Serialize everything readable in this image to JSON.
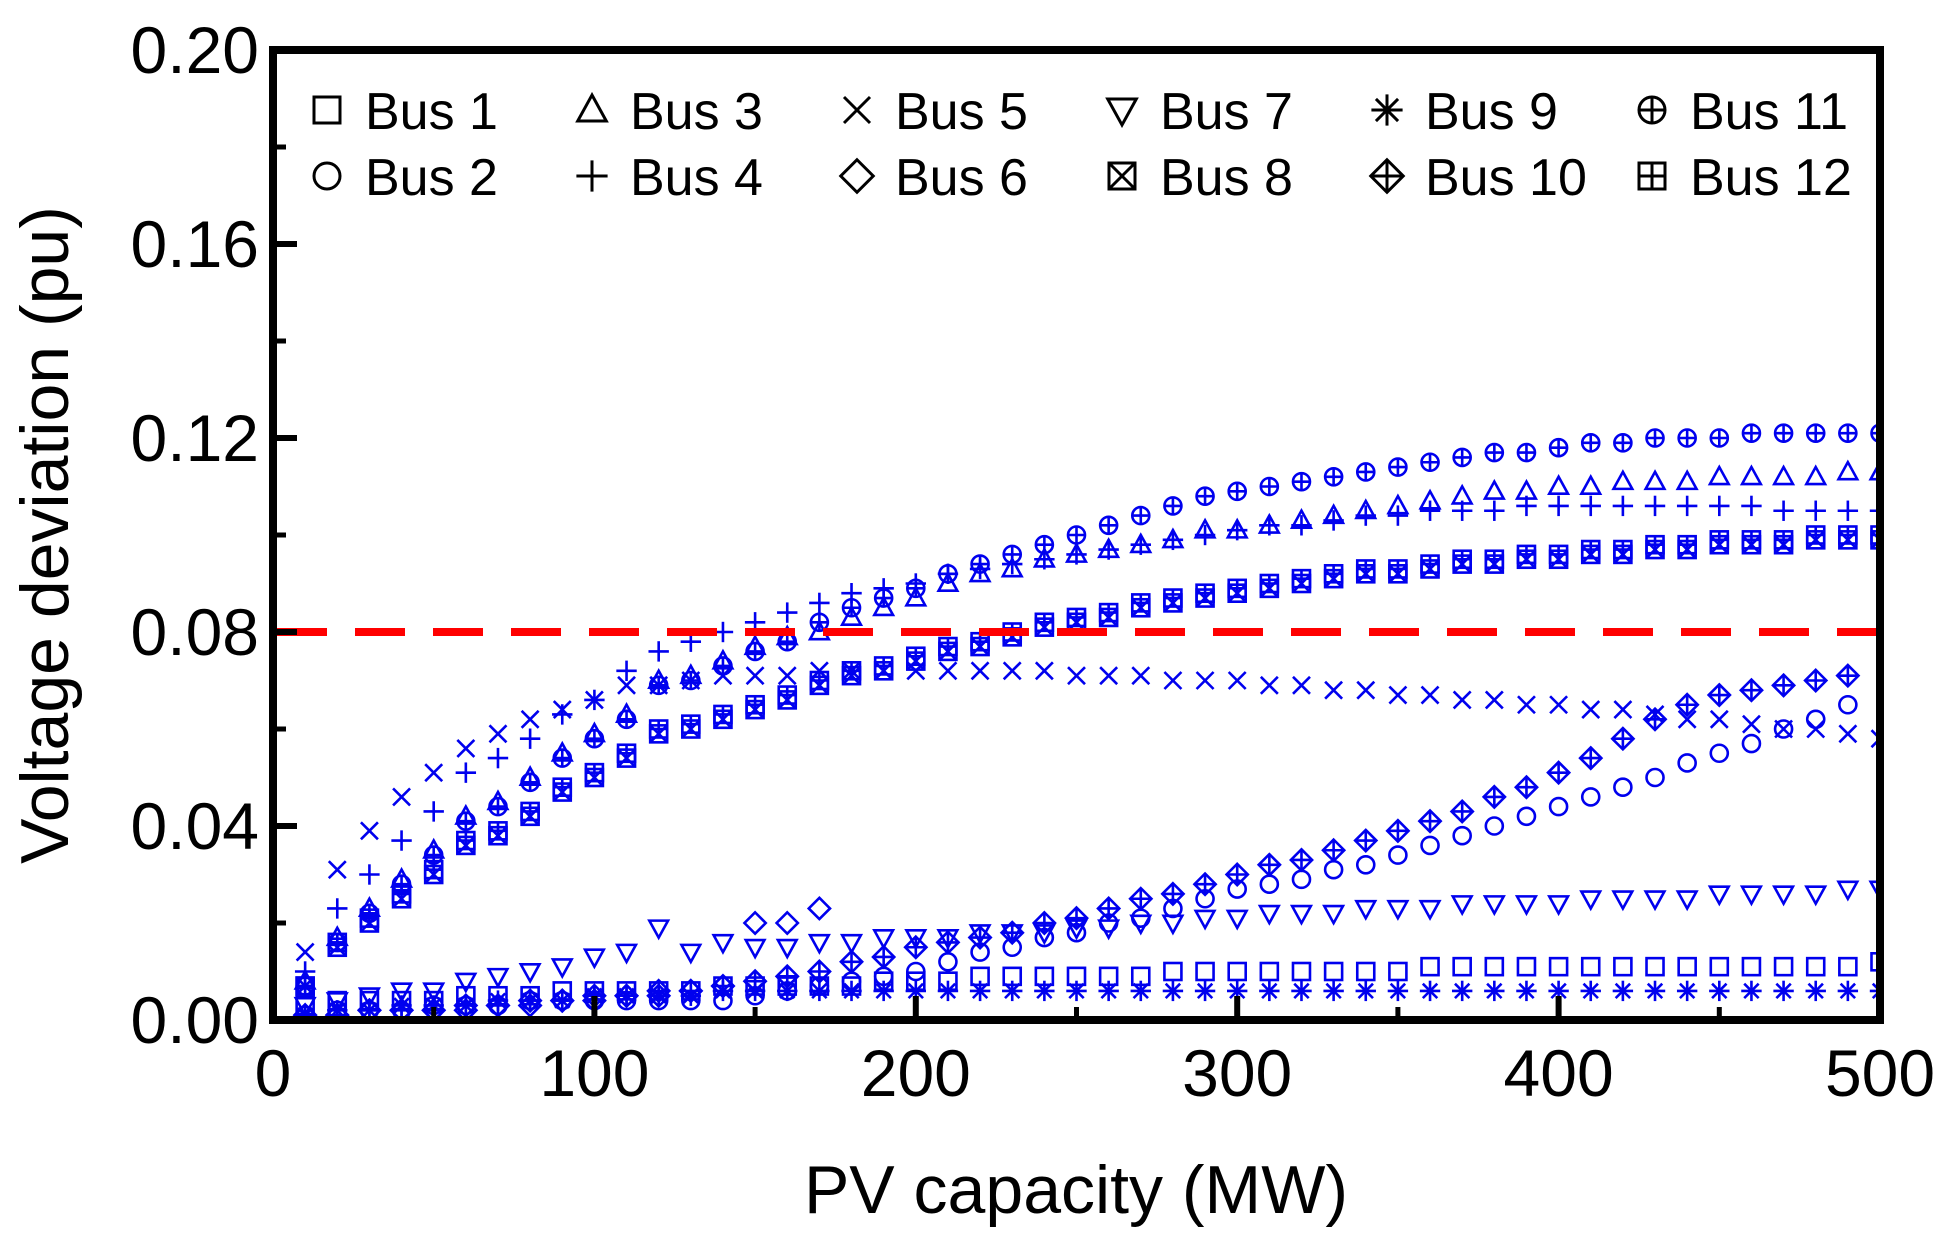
{
  "chart_data": {
    "type": "scatter",
    "title": "",
    "xlabel": "PV capacity  (MW)",
    "ylabel": "Voltage deviation (pu)",
    "xlim": [
      0,
      500
    ],
    "ylim": [
      0,
      0.2
    ],
    "xticks": [
      "0",
      "100",
      "200",
      "300",
      "400",
      "500"
    ],
    "yticks": [
      "0.00",
      "0.04",
      "0.08",
      "0.12",
      "0.16",
      "0.20"
    ],
    "grid": false,
    "legend_position": "top",
    "marker_color": "#0000ee",
    "threshold": {
      "y": 0.08,
      "color": "#ff0000",
      "style": "dashed"
    },
    "series": [
      {
        "name": "Bus 1",
        "marker": "square",
        "x": [
          10,
          20,
          30,
          40,
          50,
          60,
          70,
          80,
          90,
          100,
          110,
          120,
          130,
          140,
          150,
          160,
          170,
          180,
          190,
          200,
          210,
          220,
          230,
          240,
          250,
          260,
          270,
          280,
          290,
          300,
          310,
          320,
          330,
          340,
          350,
          360,
          370,
          380,
          390,
          400,
          410,
          420,
          430,
          440,
          450,
          460,
          470,
          480,
          490,
          500
        ],
        "y": [
          0.003,
          0.004,
          0.004,
          0.004,
          0.004,
          0.005,
          0.005,
          0.005,
          0.006,
          0.006,
          0.006,
          0.006,
          0.006,
          0.007,
          0.007,
          0.007,
          0.007,
          0.007,
          0.008,
          0.008,
          0.008,
          0.009,
          0.009,
          0.009,
          0.009,
          0.009,
          0.009,
          0.01,
          0.01,
          0.01,
          0.01,
          0.01,
          0.01,
          0.01,
          0.01,
          0.011,
          0.011,
          0.011,
          0.011,
          0.011,
          0.011,
          0.011,
          0.011,
          0.011,
          0.011,
          0.011,
          0.011,
          0.011,
          0.011,
          0.012
        ]
      },
      {
        "name": "Bus 2",
        "marker": "circle",
        "x": [
          10,
          20,
          30,
          40,
          50,
          60,
          70,
          80,
          90,
          100,
          110,
          120,
          130,
          140,
          150,
          160,
          170,
          180,
          190,
          200,
          210,
          220,
          230,
          240,
          250,
          260,
          270,
          280,
          290,
          300,
          310,
          320,
          330,
          340,
          350,
          360,
          370,
          380,
          390,
          400,
          410,
          420,
          430,
          440,
          450,
          460,
          470,
          480,
          490
        ],
        "y": [
          0.001,
          0.002,
          0.002,
          0.002,
          0.003,
          0.003,
          0.003,
          0.004,
          0.004,
          0.004,
          0.004,
          0.004,
          0.004,
          0.004,
          0.005,
          0.006,
          0.007,
          0.008,
          0.009,
          0.01,
          0.012,
          0.014,
          0.015,
          0.017,
          0.018,
          0.02,
          0.021,
          0.023,
          0.025,
          0.027,
          0.028,
          0.029,
          0.031,
          0.032,
          0.034,
          0.036,
          0.038,
          0.04,
          0.042,
          0.044,
          0.046,
          0.048,
          0.05,
          0.053,
          0.055,
          0.057,
          0.06,
          0.062,
          0.065
        ]
      },
      {
        "name": "Bus 3",
        "marker": "triangle-up",
        "x": [
          10,
          20,
          30,
          40,
          50,
          60,
          70,
          80,
          90,
          100,
          110,
          120,
          130,
          140,
          150,
          160,
          170,
          180,
          190,
          200,
          210,
          220,
          230,
          240,
          250,
          260,
          270,
          280,
          290,
          300,
          310,
          320,
          330,
          340,
          350,
          360,
          370,
          380,
          390,
          400,
          410,
          420,
          430,
          440,
          450,
          460,
          470,
          480,
          490,
          500
        ],
        "y": [
          0.008,
          0.017,
          0.023,
          0.029,
          0.035,
          0.042,
          0.045,
          0.05,
          0.055,
          0.059,
          0.063,
          0.07,
          0.071,
          0.074,
          0.077,
          0.079,
          0.08,
          0.083,
          0.085,
          0.087,
          0.09,
          0.092,
          0.093,
          0.095,
          0.096,
          0.097,
          0.098,
          0.099,
          0.101,
          0.101,
          0.102,
          0.103,
          0.104,
          0.105,
          0.106,
          0.107,
          0.108,
          0.109,
          0.109,
          0.11,
          0.11,
          0.111,
          0.111,
          0.111,
          0.112,
          0.112,
          0.112,
          0.112,
          0.113,
          0.113
        ]
      },
      {
        "name": "Bus 4",
        "marker": "plus",
        "x": [
          10,
          20,
          30,
          40,
          50,
          60,
          70,
          80,
          90,
          100,
          110,
          120,
          130,
          140,
          150,
          160,
          170,
          180,
          190,
          200,
          210,
          220,
          230,
          240,
          250,
          260,
          270,
          280,
          290,
          300,
          310,
          320,
          330,
          340,
          350,
          360,
          370,
          380,
          390,
          400,
          410,
          420,
          430,
          440,
          450,
          460,
          470,
          480,
          490,
          500
        ],
        "y": [
          0.01,
          0.023,
          0.03,
          0.037,
          0.043,
          0.051,
          0.054,
          0.058,
          0.063,
          0.066,
          0.072,
          0.076,
          0.078,
          0.08,
          0.082,
          0.084,
          0.086,
          0.088,
          0.089,
          0.09,
          0.092,
          0.093,
          0.094,
          0.095,
          0.096,
          0.097,
          0.098,
          0.099,
          0.1,
          0.101,
          0.102,
          0.102,
          0.103,
          0.104,
          0.104,
          0.105,
          0.105,
          0.105,
          0.106,
          0.106,
          0.106,
          0.106,
          0.106,
          0.106,
          0.106,
          0.106,
          0.105,
          0.105,
          0.105,
          0.105
        ]
      },
      {
        "name": "Bus 5",
        "marker": "x",
        "x": [
          10,
          20,
          30,
          40,
          50,
          60,
          70,
          80,
          90,
          100,
          110,
          120,
          130,
          140,
          150,
          160,
          170,
          180,
          190,
          200,
          210,
          220,
          230,
          240,
          250,
          260,
          270,
          280,
          290,
          300,
          310,
          320,
          330,
          340,
          350,
          360,
          370,
          380,
          390,
          400,
          410,
          420,
          430,
          440,
          450,
          460,
          470,
          480,
          490,
          500
        ],
        "y": [
          0.014,
          0.031,
          0.039,
          0.046,
          0.051,
          0.056,
          0.059,
          0.062,
          0.064,
          0.066,
          0.069,
          0.069,
          0.07,
          0.071,
          0.071,
          0.071,
          0.072,
          0.072,
          0.072,
          0.072,
          0.072,
          0.072,
          0.072,
          0.072,
          0.071,
          0.071,
          0.071,
          0.07,
          0.07,
          0.07,
          0.069,
          0.069,
          0.068,
          0.068,
          0.067,
          0.067,
          0.066,
          0.066,
          0.065,
          0.065,
          0.064,
          0.064,
          0.063,
          0.062,
          0.062,
          0.061,
          0.06,
          0.06,
          0.059,
          0.058
        ]
      },
      {
        "name": "Bus 6",
        "marker": "diamond",
        "x": [
          10,
          20,
          30,
          40,
          50,
          60,
          70,
          80,
          90,
          100,
          110,
          120,
          130,
          140,
          150,
          160,
          170
        ],
        "y": [
          0.001,
          0.001,
          0.002,
          0.002,
          0.002,
          0.002,
          0.003,
          0.003,
          0.004,
          0.004,
          0.005,
          0.005,
          0.006,
          0.007,
          0.02,
          0.02,
          0.023
        ]
      },
      {
        "name": "Bus 7",
        "marker": "triangle-down",
        "x": [
          10,
          20,
          30,
          40,
          50,
          60,
          70,
          80,
          90,
          100,
          110,
          120,
          130,
          140,
          150,
          160,
          170,
          180,
          190,
          200,
          210,
          220,
          230,
          240,
          250,
          260,
          270,
          280,
          290,
          300,
          310,
          320,
          330,
          340,
          350,
          360,
          370,
          380,
          390,
          400,
          410,
          420,
          430,
          440,
          450,
          460,
          470,
          480,
          490,
          500
        ],
        "y": [
          0.003,
          0.004,
          0.005,
          0.006,
          0.006,
          0.008,
          0.009,
          0.01,
          0.011,
          0.013,
          0.014,
          0.019,
          0.014,
          0.016,
          0.015,
          0.015,
          0.016,
          0.016,
          0.017,
          0.017,
          0.017,
          0.018,
          0.018,
          0.018,
          0.019,
          0.019,
          0.02,
          0.02,
          0.021,
          0.021,
          0.022,
          0.022,
          0.022,
          0.023,
          0.023,
          0.023,
          0.024,
          0.024,
          0.024,
          0.024,
          0.025,
          0.025,
          0.025,
          0.025,
          0.026,
          0.026,
          0.026,
          0.026,
          0.027,
          0.027
        ]
      },
      {
        "name": "Bus 8",
        "marker": "square-x",
        "x": [
          10,
          20,
          30,
          40,
          50,
          60,
          70,
          80,
          90,
          100,
          110,
          120,
          130,
          140,
          150,
          160,
          170,
          180,
          190,
          200,
          210,
          220,
          230,
          240,
          250,
          260,
          270,
          280,
          290,
          300,
          310,
          320,
          330,
          340,
          350,
          360,
          370,
          380,
          390,
          400,
          410,
          420,
          430,
          440,
          450,
          460,
          470,
          480,
          490,
          500
        ],
        "y": [
          0.007,
          0.015,
          0.02,
          0.025,
          0.03,
          0.036,
          0.038,
          0.042,
          0.047,
          0.05,
          0.054,
          0.059,
          0.06,
          0.062,
          0.064,
          0.066,
          0.069,
          0.071,
          0.072,
          0.074,
          0.076,
          0.077,
          0.079,
          0.081,
          0.082,
          0.083,
          0.085,
          0.086,
          0.087,
          0.088,
          0.089,
          0.09,
          0.091,
          0.092,
          0.092,
          0.093,
          0.094,
          0.094,
          0.095,
          0.095,
          0.096,
          0.096,
          0.097,
          0.097,
          0.098,
          0.098,
          0.098,
          0.099,
          0.099,
          0.099
        ]
      },
      {
        "name": "Bus 9",
        "marker": "asterisk",
        "x": [
          10,
          20,
          30,
          40,
          50,
          60,
          70,
          80,
          90,
          100,
          110,
          120,
          130,
          140,
          150,
          160,
          170,
          180,
          190,
          200,
          210,
          220,
          230,
          240,
          250,
          260,
          270,
          280,
          290,
          300,
          310,
          320,
          330,
          340,
          350,
          360,
          370,
          380,
          390,
          400,
          410,
          420,
          430,
          440,
          450,
          460,
          470,
          480,
          490,
          500
        ],
        "y": [
          0.001,
          0.002,
          0.002,
          0.003,
          0.003,
          0.003,
          0.004,
          0.004,
          0.004,
          0.005,
          0.005,
          0.005,
          0.005,
          0.006,
          0.006,
          0.006,
          0.006,
          0.006,
          0.006,
          0.006,
          0.006,
          0.006,
          0.006,
          0.006,
          0.006,
          0.006,
          0.006,
          0.006,
          0.006,
          0.006,
          0.006,
          0.006,
          0.006,
          0.006,
          0.006,
          0.006,
          0.006,
          0.006,
          0.006,
          0.006,
          0.006,
          0.006,
          0.006,
          0.006,
          0.006,
          0.006,
          0.006,
          0.006,
          0.006,
          0.006
        ]
      },
      {
        "name": "Bus 10",
        "marker": "diamond-plus",
        "x": [
          10,
          20,
          30,
          40,
          50,
          60,
          70,
          80,
          90,
          100,
          110,
          120,
          130,
          140,
          150,
          160,
          170,
          180,
          190,
          200,
          210,
          220,
          230,
          240,
          250,
          260,
          270,
          280,
          290,
          300,
          310,
          320,
          330,
          340,
          350,
          360,
          370,
          380,
          390,
          400,
          410,
          420,
          430,
          440,
          450,
          460,
          470,
          480,
          490
        ],
        "y": [
          0.001,
          0.001,
          0.002,
          0.002,
          0.002,
          0.003,
          0.003,
          0.004,
          0.004,
          0.005,
          0.005,
          0.006,
          0.006,
          0.007,
          0.008,
          0.009,
          0.01,
          0.012,
          0.013,
          0.015,
          0.016,
          0.017,
          0.018,
          0.02,
          0.021,
          0.023,
          0.025,
          0.026,
          0.028,
          0.03,
          0.032,
          0.033,
          0.035,
          0.037,
          0.039,
          0.041,
          0.043,
          0.046,
          0.048,
          0.051,
          0.054,
          0.058,
          0.062,
          0.065,
          0.067,
          0.068,
          0.069,
          0.07,
          0.071
        ]
      },
      {
        "name": "Bus 11",
        "marker": "circle-plus",
        "x": [
          10,
          20,
          30,
          40,
          50,
          60,
          70,
          80,
          90,
          100,
          110,
          120,
          130,
          140,
          150,
          160,
          170,
          180,
          190,
          200,
          210,
          220,
          230,
          240,
          250,
          260,
          270,
          280,
          290,
          300,
          310,
          320,
          330,
          340,
          350,
          360,
          370,
          380,
          390,
          400,
          410,
          420,
          430,
          440,
          450,
          460,
          470,
          480,
          490,
          500
        ],
        "y": [
          0.007,
          0.016,
          0.022,
          0.028,
          0.034,
          0.041,
          0.044,
          0.049,
          0.054,
          0.058,
          0.062,
          0.069,
          0.07,
          0.073,
          0.076,
          0.078,
          0.082,
          0.085,
          0.087,
          0.089,
          0.092,
          0.094,
          0.096,
          0.098,
          0.1,
          0.102,
          0.104,
          0.106,
          0.108,
          0.109,
          0.11,
          0.111,
          0.112,
          0.113,
          0.114,
          0.115,
          0.116,
          0.117,
          0.117,
          0.118,
          0.119,
          0.119,
          0.12,
          0.12,
          0.12,
          0.121,
          0.121,
          0.121,
          0.121,
          0.121
        ]
      },
      {
        "name": "Bus 12",
        "marker": "square-plus",
        "x": [
          10,
          20,
          30,
          40,
          50,
          60,
          70,
          80,
          90,
          100,
          110,
          120,
          130,
          140,
          150,
          160,
          170,
          180,
          190,
          200,
          210,
          220,
          230,
          240,
          250,
          260,
          270,
          280,
          290,
          300,
          310,
          320,
          330,
          340,
          350,
          360,
          370,
          380,
          390,
          400,
          410,
          420,
          430,
          440,
          450,
          460,
          470,
          480,
          490,
          500
        ],
        "y": [
          0.007,
          0.016,
          0.021,
          0.026,
          0.031,
          0.037,
          0.039,
          0.043,
          0.048,
          0.051,
          0.055,
          0.06,
          0.061,
          0.063,
          0.065,
          0.067,
          0.07,
          0.072,
          0.073,
          0.075,
          0.077,
          0.078,
          0.08,
          0.082,
          0.083,
          0.084,
          0.086,
          0.087,
          0.088,
          0.089,
          0.09,
          0.091,
          0.092,
          0.093,
          0.093,
          0.094,
          0.095,
          0.095,
          0.096,
          0.096,
          0.097,
          0.097,
          0.098,
          0.098,
          0.099,
          0.099,
          0.099,
          0.1,
          0.1,
          0.1
        ]
      }
    ]
  }
}
